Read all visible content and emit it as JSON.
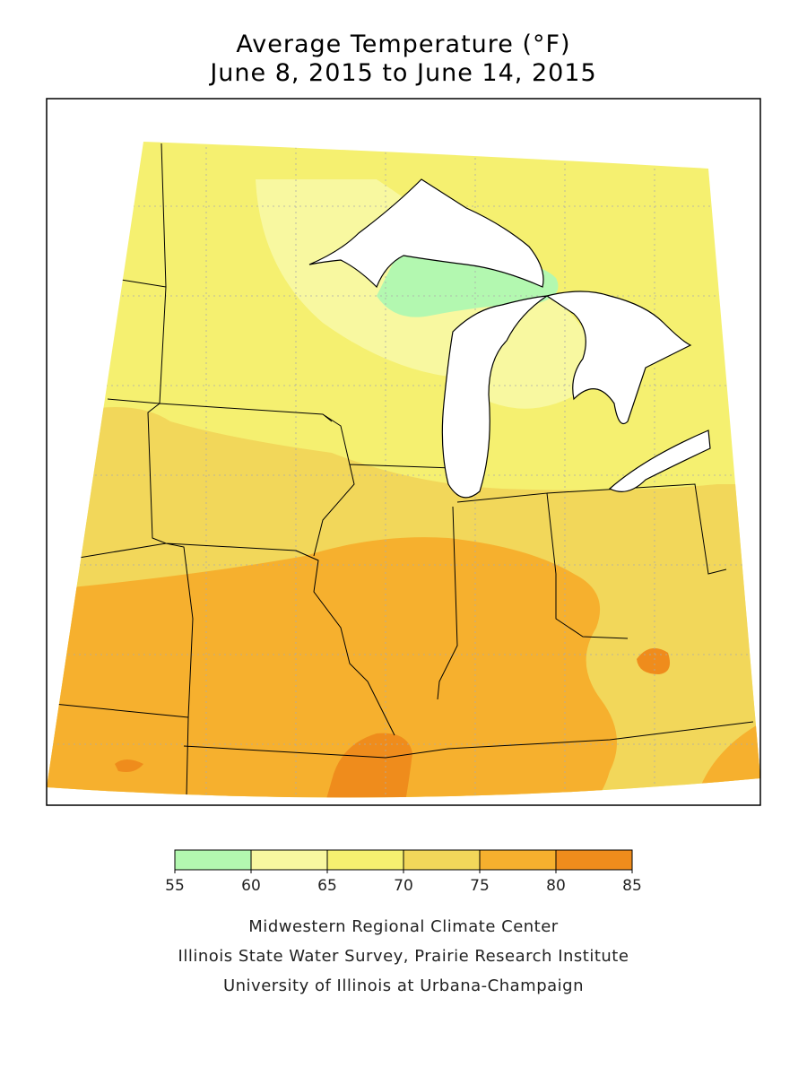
{
  "title": [
    "Average Temperature (°F)",
    "June 8, 2015 to June 14, 2015"
  ],
  "legend": {
    "bins": [
      55,
      60,
      65,
      70,
      75,
      80,
      85
    ],
    "colors": [
      "#b3f8b0",
      "#f8f8a0",
      "#f5f070",
      "#f2d75a",
      "#f6b02e",
      "#ef8c1c"
    ]
  },
  "credits": [
    "Midwestern Regional Climate Center",
    "Illinois State Water Survey, Prairie Research Institute",
    "University of Illinois at Urbana-Champaign"
  ]
}
